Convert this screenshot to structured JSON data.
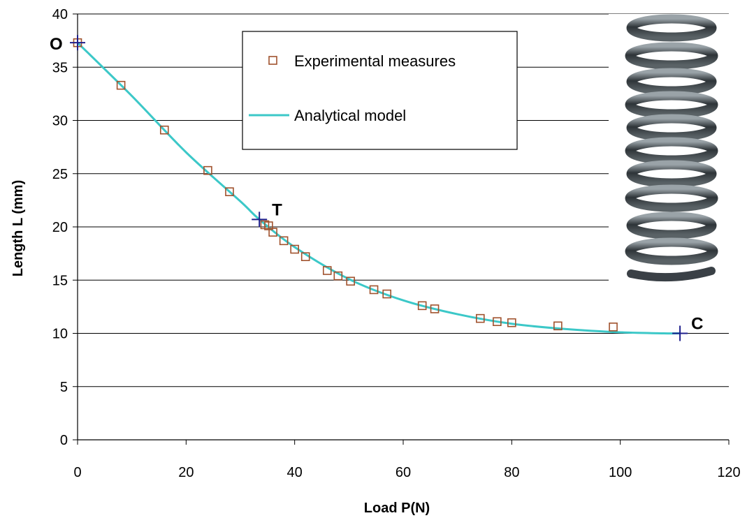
{
  "chart_data": {
    "type": "line",
    "title": "",
    "xlabel": "Load P(N)",
    "ylabel": "Length L (mm)",
    "xlim": [
      0,
      120
    ],
    "ylim": [
      0,
      40
    ],
    "x_ticks": [
      0,
      20,
      40,
      60,
      80,
      100,
      120
    ],
    "y_ticks": [
      0,
      5,
      10,
      15,
      20,
      25,
      30,
      35,
      40
    ],
    "grid": "horizontal",
    "legend_position": "top-center",
    "series": [
      {
        "name": "Experimental measures",
        "kind": "scatter",
        "marker": "hollow-square",
        "color": "#A0522D",
        "x": [
          0,
          8,
          16,
          24,
          28,
          34.5,
          35.2,
          36,
          38,
          40,
          42,
          46,
          48,
          50.3,
          54.6,
          57,
          63.5,
          65.8,
          74.2,
          77.3,
          80,
          88.5,
          98.7
        ],
        "y": [
          37.3,
          33.3,
          29.1,
          25.3,
          23.3,
          20.2,
          20.1,
          19.5,
          18.7,
          17.9,
          17.2,
          15.9,
          15.4,
          14.9,
          14.1,
          13.7,
          12.6,
          12.3,
          11.4,
          11.1,
          11.0,
          10.7,
          10.6
        ]
      },
      {
        "name": "Analytical model",
        "kind": "line",
        "color": "#3CC8C8",
        "x": [
          0,
          10,
          20,
          30,
          33.5,
          40,
          50,
          60,
          70,
          80,
          90,
          100,
          108,
          111
        ],
        "y": [
          37.3,
          32.3,
          27.0,
          22.4,
          20.7,
          18.1,
          15.1,
          13.1,
          11.8,
          10.9,
          10.4,
          10.1,
          10.0,
          10.0
        ]
      }
    ],
    "markers": [
      {
        "label": "O",
        "x": 0,
        "y": 37.3,
        "color": "#1F1F8C"
      },
      {
        "label": "T",
        "x": 33.5,
        "y": 20.7,
        "color": "#1F1F8C"
      },
      {
        "label": "C",
        "x": 111,
        "y": 10.0,
        "color": "#1F1F8C"
      }
    ]
  },
  "spring_photo": {
    "icon": "coil-spring-photo",
    "color": "#3A4046"
  }
}
